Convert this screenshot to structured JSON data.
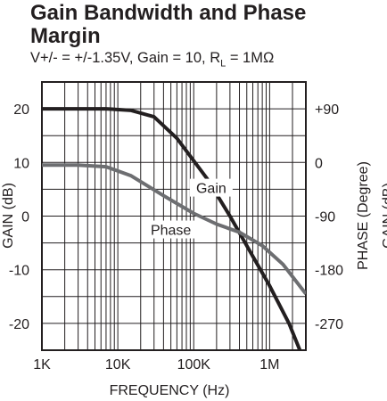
{
  "chart_data": {
    "type": "line",
    "title": "Gain Bandwidth and Phase Margin",
    "subtitle": {
      "prefix": "V+/- = +/-1.35V, Gain = 10, R",
      "sub": "L",
      "suffix": " = 1MΩ"
    },
    "xlabel": "FREQUENCY (Hz)",
    "ylabel_left": "GAIN (dB)",
    "ylabel_right": "PHASE (Degree)",
    "ylabel_right_clipped": "GAIN (dB)",
    "x_scale": "log",
    "xlim": [
      1000,
      3000000
    ],
    "x_ticks": [
      {
        "value": 1000,
        "label": "1K"
      },
      {
        "value": 10000,
        "label": "10K"
      },
      {
        "value": 100000,
        "label": "100K"
      },
      {
        "value": 1000000,
        "label": "1M"
      }
    ],
    "ylim_left": [
      -25,
      25
    ],
    "y_ticks_left": [
      {
        "value": 20,
        "label": "20"
      },
      {
        "value": 10,
        "label": "10"
      },
      {
        "value": 0,
        "label": "0"
      },
      {
        "value": -10,
        "label": "-10"
      },
      {
        "value": -20,
        "label": "-20"
      }
    ],
    "ylim_right": [
      -315,
      135
    ],
    "y_ticks_right": [
      {
        "value": 90,
        "label": "+90"
      },
      {
        "value": 0,
        "label": "0"
      },
      {
        "value": -90,
        "label": "-90"
      },
      {
        "value": -180,
        "label": "-180"
      },
      {
        "value": -270,
        "label": "-270"
      }
    ],
    "grid": true,
    "series": [
      {
        "name": "Gain",
        "axis": "left",
        "color": "#231f20",
        "label_at": {
          "x": 170000,
          "y": 5.3
        },
        "points": [
          [
            1000,
            20
          ],
          [
            3000,
            20
          ],
          [
            7000,
            20
          ],
          [
            15000,
            19.7
          ],
          [
            30000,
            18.5
          ],
          [
            60000,
            14.5
          ],
          [
            150000,
            7
          ],
          [
            300000,
            0
          ],
          [
            600000,
            -7.5
          ],
          [
            1000000,
            -13
          ],
          [
            1800000,
            -20
          ],
          [
            2500000,
            -25
          ]
        ]
      },
      {
        "name": "Phase",
        "axis": "left",
        "color": "#6d6e71",
        "label_at": {
          "x": 50000,
          "y": -2.5
        },
        "points": [
          [
            1000,
            9.5
          ],
          [
            3000,
            9.5
          ],
          [
            7000,
            9.2
          ],
          [
            15000,
            7.5
          ],
          [
            40000,
            3.8
          ],
          [
            100000,
            0.5
          ],
          [
            200000,
            -1.5
          ],
          [
            400000,
            -3
          ],
          [
            800000,
            -5.5
          ],
          [
            1500000,
            -9
          ],
          [
            3000000,
            -14.5
          ]
        ]
      }
    ]
  }
}
